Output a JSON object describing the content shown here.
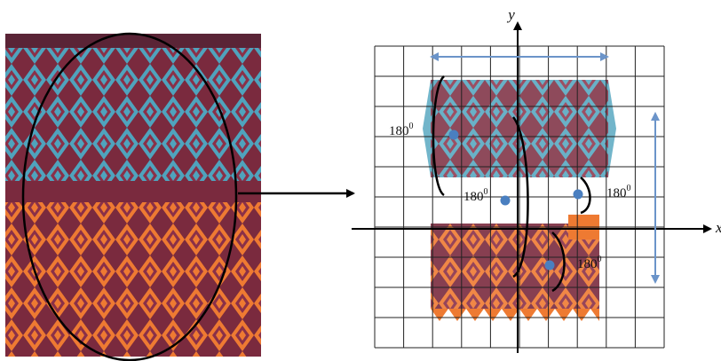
{
  "figure": {
    "axis_labels": {
      "x": "x",
      "y": "y"
    },
    "rotation_labels": [
      "180",
      "180",
      "180",
      "180"
    ],
    "rotation_superscript": "0",
    "colors": {
      "fabric_base": "#7a2a3e",
      "teal_band": "#4fa3bd",
      "orange_band": "#ee7a32",
      "maroon_motif": "#8a3048",
      "grid_line": "#222222",
      "axis": "#000000",
      "measure_arrow": "#6b94c9",
      "center_dot": "#4a7fc0"
    },
    "icons": [
      "arrow-right-icon",
      "center-point-icon"
    ]
  }
}
